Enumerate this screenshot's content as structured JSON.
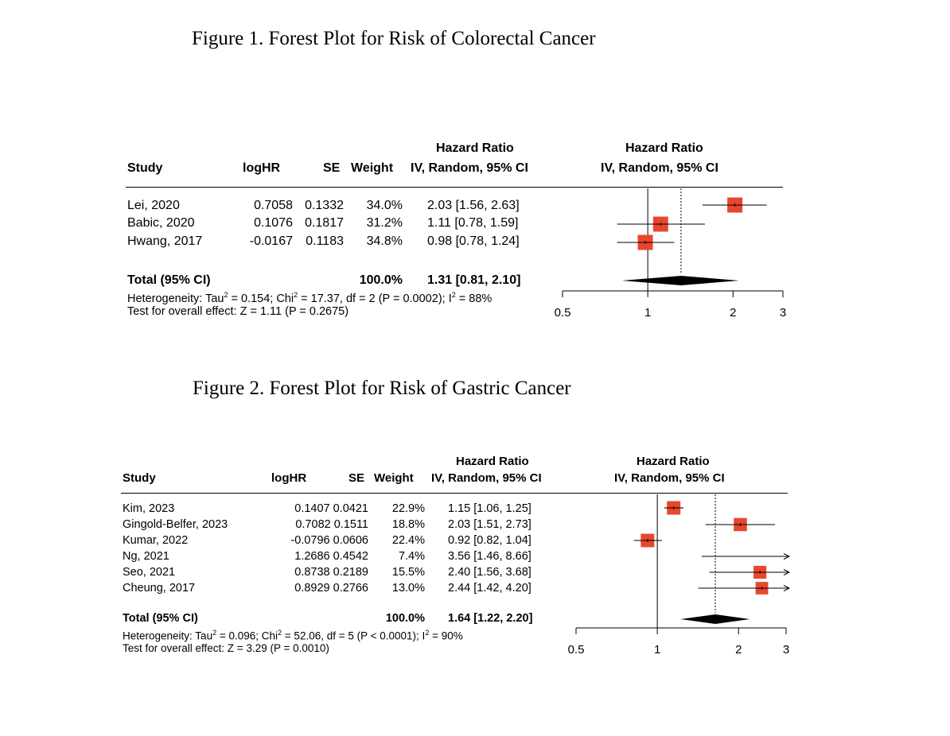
{
  "chart_data": [
    {
      "type": "forest",
      "title": "Figure 1. Forest Plot for Risk of Colorectal Cancer",
      "header": {
        "study": "Study",
        "loghr": "logHR",
        "se": "SE",
        "weight": "Weight",
        "hr_line1": "Hazard Ratio",
        "hr_line2": "IV, Random, 95% CI",
        "plot_line1": "Hazard Ratio",
        "plot_line2": "IV, Random, 95% CI"
      },
      "studies": [
        {
          "name": "Lei, 2020",
          "loghr": "0.7058",
          "se": "0.1332",
          "weight": "34.0%",
          "ci_text": "2.03 [1.56, 2.63]",
          "hr": 2.03,
          "lo": 1.56,
          "hi": 2.63,
          "w": 34.0
        },
        {
          "name": "Babic, 2020",
          "loghr": "0.1076",
          "se": "0.1817",
          "weight": "31.2%",
          "ci_text": "1.11 [0.78, 1.59]",
          "hr": 1.11,
          "lo": 0.78,
          "hi": 1.59,
          "w": 31.2
        },
        {
          "name": "Hwang, 2017",
          "loghr": "-0.0167",
          "se": "0.1183",
          "weight": "34.8%",
          "ci_text": "0.98 [0.78, 1.24]",
          "hr": 0.98,
          "lo": 0.78,
          "hi": 1.24,
          "w": 34.8
        }
      ],
      "total": {
        "label": "Total (95% CI)",
        "weight": "100.0%",
        "ci_text": "1.31 [0.81, 2.10]",
        "hr": 1.31,
        "lo": 0.81,
        "hi": 2.1
      },
      "heterogeneity": {
        "prefix": "Heterogeneity: Tau",
        "b": "; Chi",
        "c": " = 17.37, df = 2 (P = 0.0002); I",
        "d": " = 88%"
      },
      "overall": "Test for overall effect: Z = 1.11 (P = 0.2675)",
      "x_ticks": [
        {
          "value": 0.5,
          "label": "0.5"
        },
        {
          "value": 1,
          "label": "1"
        },
        {
          "value": 2,
          "label": "2"
        },
        {
          "value": 3,
          "label": "3"
        }
      ],
      "x_scale": "log",
      "xlim": [
        0.5,
        3
      ]
    },
    {
      "type": "forest",
      "title": "Figure 2. Forest Plot for Risk of Gastric Cancer",
      "header": {
        "study": "Study",
        "loghr": "logHR",
        "se": "SE",
        "weight": "Weight",
        "hr_line1": "Hazard Ratio",
        "hr_line2": "IV, Random, 95% CI",
        "plot_line1": "Hazard Ratio",
        "plot_line2": "IV, Random, 95% CI"
      },
      "studies": [
        {
          "name": "Kim, 2023",
          "loghr": "0.1407",
          "se": "0.0421",
          "weight": "22.9%",
          "ci_text": "1.15 [1.06, 1.25]",
          "hr": 1.15,
          "lo": 1.06,
          "hi": 1.25,
          "w": 22.9
        },
        {
          "name": "Gingold-Belfer, 2023",
          "loghr": "0.7082",
          "se": "0.1511",
          "weight": "18.8%",
          "ci_text": "2.03 [1.51, 2.73]",
          "hr": 2.03,
          "lo": 1.51,
          "hi": 2.73,
          "w": 18.8
        },
        {
          "name": "Kumar, 2022",
          "loghr": "-0.0796",
          "se": "0.0606",
          "weight": "22.4%",
          "ci_text": "0.92 [0.82, 1.04]",
          "hr": 0.92,
          "lo": 0.82,
          "hi": 1.04,
          "w": 22.4
        },
        {
          "name": "Ng, 2021",
          "loghr": "1.2686",
          "se": "0.4542",
          "weight": "7.4%",
          "ci_text": "3.56 [1.46, 8.66]",
          "hr": 3.56,
          "lo": 1.46,
          "hi": 8.66,
          "w": 7.4
        },
        {
          "name": "Seo, 2021",
          "loghr": "0.8738",
          "se": "0.2189",
          "weight": "15.5%",
          "ci_text": "2.40 [1.56, 3.68]",
          "hr": 2.4,
          "lo": 1.56,
          "hi": 3.68,
          "w": 15.5
        },
        {
          "name": "Cheung, 2017",
          "loghr": "0.8929",
          "se": "0.2766",
          "weight": "13.0%",
          "ci_text": "2.44 [1.42, 4.20]",
          "hr": 2.44,
          "lo": 1.42,
          "hi": 4.2,
          "w": 13.0
        }
      ],
      "total": {
        "label": "Total (95% CI)",
        "weight": "100.0%",
        "ci_text": "1.64 [1.22, 2.20]",
        "hr": 1.64,
        "lo": 1.22,
        "hi": 2.2
      },
      "heterogeneity": {
        "prefix": "Heterogeneity: Tau",
        "b": " = 0.096; Chi",
        "c": " = 52.06, df = 5 (P < 0.0001); I",
        "d": " = 90%"
      },
      "overall": "Test for overall effect: Z = 3.29 (P = 0.0010)",
      "x_ticks": [
        {
          "value": 0.5,
          "label": "0.5"
        },
        {
          "value": 1,
          "label": "1"
        },
        {
          "value": 2,
          "label": "2"
        },
        {
          "value": 3,
          "label": "3"
        }
      ],
      "x_scale": "log",
      "xlim": [
        0.5,
        3
      ]
    }
  ],
  "fig1_tau_value": " = 0.154",
  "sup2": "2",
  "colors": {
    "square": "#e8462e",
    "diamond": "#000000"
  }
}
